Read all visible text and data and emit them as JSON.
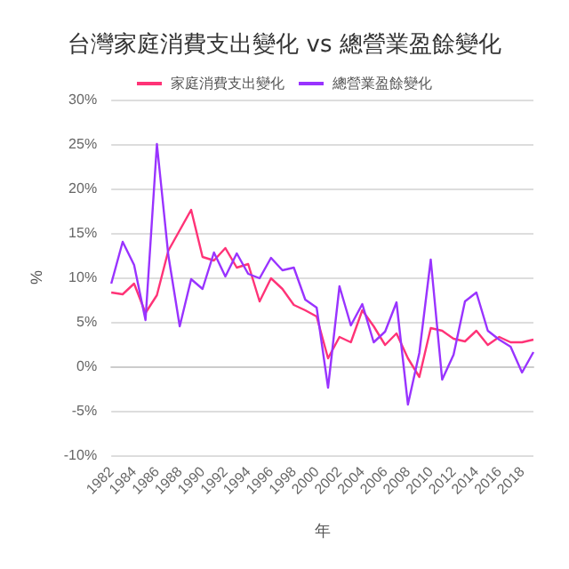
{
  "chart_data": {
    "type": "line",
    "title": "台灣家庭消費支出變化 vs 總營業盈餘變化",
    "xlabel": "年",
    "ylabel": "%",
    "categories": [
      "1982",
      null,
      "1984",
      null,
      "1986",
      null,
      "1988",
      null,
      "1990",
      null,
      "1992",
      null,
      "1994",
      null,
      "1996",
      null,
      "1998",
      null,
      "2000",
      null,
      "2002",
      null,
      "2004",
      null,
      "2006",
      null,
      "2008",
      null,
      "2010",
      null,
      "2012",
      null,
      "2014",
      null,
      "2016",
      null,
      "2018",
      null
    ],
    "series": [
      {
        "name": "家庭消費支出變化",
        "color": "#ff3377",
        "values": [
          8.3,
          8.1,
          9.3,
          6.0,
          8.0,
          13.0,
          15.3,
          17.6,
          12.3,
          11.9,
          13.3,
          11.1,
          11.5,
          7.3,
          9.9,
          8.7,
          6.9,
          6.3,
          5.6,
          0.9,
          3.3,
          2.7,
          6.3,
          4.5,
          2.4,
          3.7,
          0.9,
          -1.2,
          4.3,
          4.0,
          3.1,
          2.8,
          4.0,
          2.4,
          3.3,
          2.7,
          2.7,
          3.0
        ]
      },
      {
        "name": "總營業盈餘變化",
        "color": "#9933ff",
        "values": [
          9.3,
          14.0,
          11.4,
          5.2,
          25.0,
          12.5,
          4.5,
          9.8,
          8.7,
          12.8,
          10.1,
          12.7,
          10.4,
          9.9,
          12.2,
          10.8,
          11.1,
          7.5,
          6.6,
          -2.4,
          9.0,
          4.6,
          7.0,
          2.7,
          3.9,
          7.2,
          -4.3,
          1.5,
          12.0,
          -1.5,
          1.3,
          7.3,
          8.3,
          4.0,
          3.0,
          2.2,
          -0.7,
          1.6
        ]
      }
    ],
    "ylim": [
      -10,
      30
    ],
    "yticks": [
      {
        "value": -10,
        "label": "-10%"
      },
      {
        "value": -5,
        "label": "-5%"
      },
      {
        "value": 0,
        "label": "0%"
      },
      {
        "value": 5,
        "label": "5%"
      },
      {
        "value": 10,
        "label": "10%"
      },
      {
        "value": 15,
        "label": "15%"
      },
      {
        "value": 20,
        "label": "20%"
      },
      {
        "value": 25,
        "label": "25%"
      },
      {
        "value": 30,
        "label": "30%"
      }
    ],
    "grid": "y",
    "legend": "top",
    "marker": "none",
    "line_style": "solid"
  }
}
